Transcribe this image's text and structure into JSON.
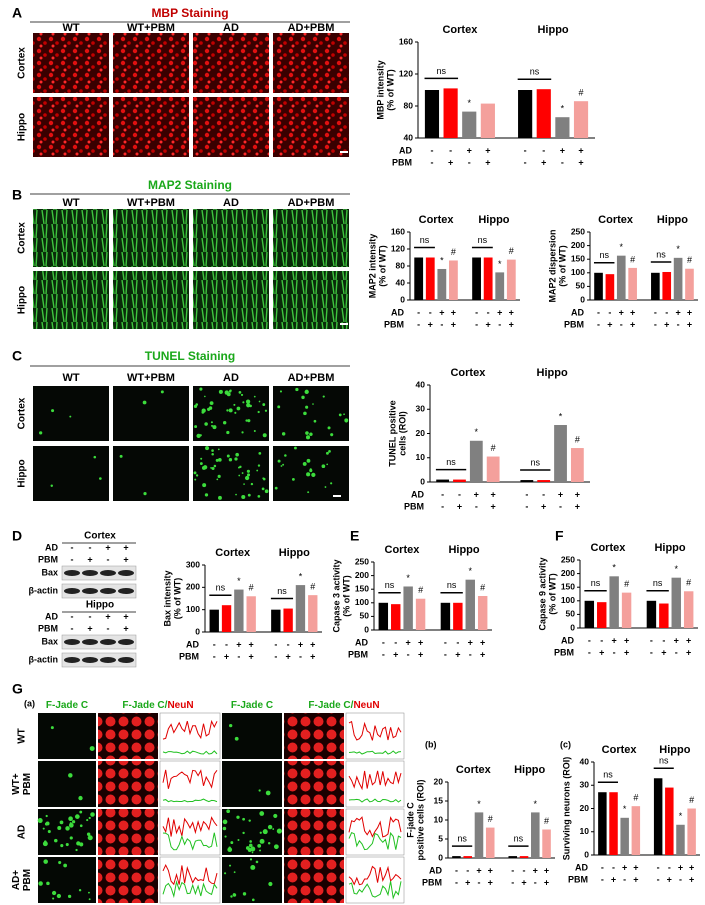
{
  "panels": {
    "A": {
      "letter": "A",
      "title": "MBP Staining",
      "columns": [
        "WT",
        "WT+PBM",
        "AD",
        "AD+PBM"
      ],
      "rows": [
        "Cortex",
        "Hippo"
      ]
    },
    "B": {
      "letter": "B",
      "title": "MAP2 Staining",
      "columns": [
        "WT",
        "WT+PBM",
        "AD",
        "AD+PBM"
      ],
      "rows": [
        "Cortex",
        "Hippo"
      ]
    },
    "C": {
      "letter": "C",
      "title": "TUNEL Staining",
      "columns": [
        "WT",
        "WT+PBM",
        "AD",
        "AD+PBM"
      ],
      "rows": [
        "Cortex",
        "Hippo"
      ]
    },
    "D": {
      "letter": "D",
      "blots": [
        {
          "region": "Cortex",
          "conditions": [
            {
              "name": "AD",
              "signs": [
                "-",
                "-",
                "+",
                "+"
              ]
            },
            {
              "name": "PBM",
              "signs": [
                "-",
                "+",
                "-",
                "+"
              ]
            }
          ],
          "bands": [
            "Bax",
            "β-actin"
          ]
        },
        {
          "region": "Hippo",
          "conditions": [
            {
              "name": "AD",
              "signs": [
                "-",
                "-",
                "+",
                "+"
              ]
            },
            {
              "name": "PBM",
              "signs": [
                "-",
                "+",
                "-",
                "+"
              ]
            }
          ],
          "bands": [
            "Bax",
            "β-actin"
          ]
        }
      ]
    },
    "E": {
      "letter": "E"
    },
    "F": {
      "letter": "F"
    },
    "G": {
      "letter": "G",
      "sub": [
        "(a)",
        "(b)",
        "(c)"
      ],
      "columns": [
        {
          "green": "F-Jade C"
        },
        {
          "green": "F-Jade C/",
          "red": "NeuN"
        },
        {
          "green": "F-Jade C"
        },
        {
          "green": "F-Jade C/",
          "red": "NeuN"
        }
      ],
      "rows": [
        [
          "WT"
        ],
        [
          "WT+",
          "PBM"
        ],
        [
          "AD"
        ],
        [
          "AD+",
          "PBM"
        ]
      ]
    }
  },
  "chart_data": [
    {
      "type": "bar",
      "groups": [
        "Cortex",
        "Hippo"
      ],
      "ylabel": [
        "MBP intensity",
        "(% of WT)"
      ],
      "values": [
        100,
        102,
        73,
        83,
        100,
        101,
        66,
        86
      ],
      "colors": [
        "#000000",
        "#ff0000",
        "#808080",
        "#f4a09c"
      ],
      "ylim": [
        40,
        160
      ],
      "yticks": [
        40,
        80,
        120,
        160
      ],
      "ns": [
        "ns",
        "ns"
      ],
      "marks": [
        null,
        null,
        "*",
        null,
        null,
        null,
        "*",
        "#"
      ],
      "conditions": [
        {
          "name": "AD",
          "signs": [
            "-",
            "-",
            "+",
            "+",
            "-",
            "-",
            "+",
            "+"
          ]
        },
        {
          "name": "PBM",
          "signs": [
            "-",
            "+",
            "-",
            "+",
            "-",
            "+",
            "-",
            "+"
          ]
        }
      ]
    },
    {
      "type": "bar",
      "groups": [
        "Cortex",
        "Hippo"
      ],
      "ylabel": [
        "MAP2 intensity",
        "(% of WT)"
      ],
      "values": [
        100,
        100,
        73,
        93,
        100,
        100,
        65,
        95
      ],
      "colors": [
        "#000000",
        "#ff0000",
        "#808080",
        "#f4a09c"
      ],
      "ylim": [
        0,
        160
      ],
      "yticks": [
        0,
        40,
        80,
        120,
        160
      ],
      "ns": [
        "ns",
        "ns"
      ],
      "marks": [
        null,
        null,
        "*",
        "#",
        null,
        null,
        "*",
        "#"
      ],
      "conditions": [
        {
          "name": "AD",
          "signs": [
            "-",
            "-",
            "+",
            "+",
            "-",
            "-",
            "+",
            "+"
          ]
        },
        {
          "name": "PBM",
          "signs": [
            "-",
            "+",
            "-",
            "+",
            "-",
            "+",
            "-",
            "+"
          ]
        }
      ]
    },
    {
      "type": "bar",
      "groups": [
        "Cortex",
        "Hippo"
      ],
      "ylabel": [
        "MAP2 dispersion",
        "(% of WT)"
      ],
      "values": [
        100,
        95,
        163,
        118,
        100,
        103,
        155,
        115
      ],
      "colors": [
        "#000000",
        "#ff0000",
        "#808080",
        "#f4a09c"
      ],
      "ylim": [
        0,
        250
      ],
      "yticks": [
        0,
        50,
        100,
        150,
        200,
        250
      ],
      "ns": [
        "ns",
        "ns"
      ],
      "marks": [
        null,
        null,
        "*",
        "#",
        null,
        null,
        "*",
        "#"
      ],
      "conditions": [
        {
          "name": "AD",
          "signs": [
            "-",
            "-",
            "+",
            "+",
            "-",
            "-",
            "+",
            "+"
          ]
        },
        {
          "name": "PBM",
          "signs": [
            "-",
            "+",
            "-",
            "+",
            "-",
            "+",
            "-",
            "+"
          ]
        }
      ]
    },
    {
      "type": "bar",
      "groups": [
        "Cortex",
        "Hippo"
      ],
      "ylabel": [
        "TUNEL positive",
        "cells (ROI)"
      ],
      "values": [
        1,
        1,
        17,
        10.5,
        0.8,
        0.8,
        23.5,
        14
      ],
      "colors": [
        "#000000",
        "#ff0000",
        "#808080",
        "#f4a09c"
      ],
      "ylim": [
        0,
        40
      ],
      "yticks": [
        0,
        10,
        20,
        30,
        40
      ],
      "ns": [
        "ns",
        "ns"
      ],
      "marks": [
        null,
        null,
        "*",
        "#",
        null,
        null,
        "*",
        "#"
      ],
      "conditions": [
        {
          "name": "AD",
          "signs": [
            "-",
            "-",
            "+",
            "+",
            "-",
            "-",
            "+",
            "+"
          ]
        },
        {
          "name": "PBM",
          "signs": [
            "-",
            "+",
            "-",
            "+",
            "-",
            "+",
            "-",
            "+"
          ]
        }
      ]
    },
    {
      "type": "bar",
      "groups": [
        "Cortex",
        "Hippo"
      ],
      "ylabel": [
        "Bax intensity",
        "(% of WT)"
      ],
      "values": [
        100,
        120,
        190,
        160,
        100,
        105,
        210,
        165
      ],
      "colors": [
        "#000000",
        "#ff0000",
        "#808080",
        "#f4a09c"
      ],
      "ylim": [
        0,
        300
      ],
      "yticks": [
        0,
        100,
        200,
        300
      ],
      "ns": [
        "ns",
        "ns"
      ],
      "marks": [
        null,
        null,
        "*",
        "#",
        null,
        null,
        "*",
        "#"
      ],
      "conditions": [
        {
          "name": "AD",
          "signs": [
            "-",
            "-",
            "+",
            "+",
            "-",
            "-",
            "+",
            "+"
          ]
        },
        {
          "name": "PBM",
          "signs": [
            "-",
            "+",
            "-",
            "+",
            "-",
            "+",
            "-",
            "+"
          ]
        }
      ]
    },
    {
      "type": "bar",
      "groups": [
        "Cortex",
        "Hippo"
      ],
      "ylabel": [
        "Capase 3 activity",
        "(% of WT)"
      ],
      "values": [
        100,
        95,
        160,
        115,
        100,
        100,
        185,
        125
      ],
      "colors": [
        "#000000",
        "#ff0000",
        "#808080",
        "#f4a09c"
      ],
      "ylim": [
        0,
        250
      ],
      "yticks": [
        0,
        50,
        100,
        150,
        200,
        250
      ],
      "ns": [
        "ns",
        "ns"
      ],
      "marks": [
        null,
        null,
        "*",
        "#",
        null,
        null,
        "*",
        "#"
      ],
      "conditions": [
        {
          "name": "AD",
          "signs": [
            "-",
            "-",
            "+",
            "+",
            "-",
            "-",
            "+",
            "+"
          ]
        },
        {
          "name": "PBM",
          "signs": [
            "-",
            "+",
            "-",
            "+",
            "-",
            "+",
            "-",
            "+"
          ]
        }
      ]
    },
    {
      "type": "bar",
      "groups": [
        "Cortex",
        "Hippo"
      ],
      "ylabel": [
        "Capase 9 activity",
        "(% of WT)"
      ],
      "values": [
        100,
        95,
        190,
        130,
        100,
        90,
        185,
        135
      ],
      "colors": [
        "#000000",
        "#ff0000",
        "#808080",
        "#f4a09c"
      ],
      "ylim": [
        0,
        250
      ],
      "yticks": [
        0,
        50,
        100,
        150,
        200,
        250
      ],
      "ns": [
        "ns",
        "ns"
      ],
      "marks": [
        null,
        null,
        "*",
        "#",
        null,
        null,
        "*",
        "#"
      ],
      "conditions": [
        {
          "name": "AD",
          "signs": [
            "-",
            "-",
            "+",
            "+",
            "-",
            "-",
            "+",
            "+"
          ]
        },
        {
          "name": "PBM",
          "signs": [
            "-",
            "+",
            "-",
            "+",
            "-",
            "+",
            "-",
            "+"
          ]
        }
      ]
    },
    {
      "type": "bar",
      "groups": [
        "Cortex",
        "Hippo"
      ],
      "ylabel": [
        "F-jade C",
        "positive cells (ROI)"
      ],
      "values": [
        0.5,
        0.5,
        12,
        8,
        0.5,
        0.5,
        12,
        7.5
      ],
      "colors": [
        "#000000",
        "#ff0000",
        "#808080",
        "#f4a09c"
      ],
      "ylim": [
        0,
        20
      ],
      "yticks": [
        0,
        5,
        10,
        15,
        20
      ],
      "ns": [
        "ns",
        "ns"
      ],
      "marks": [
        null,
        null,
        "*",
        "#",
        null,
        null,
        "*",
        "#"
      ],
      "conditions": [
        {
          "name": "AD",
          "signs": [
            "-",
            "-",
            "+",
            "+",
            "-",
            "-",
            "+",
            "+"
          ]
        },
        {
          "name": "PBM",
          "signs": [
            "-",
            "+",
            "-",
            "+",
            "-",
            "+",
            "-",
            "+"
          ]
        }
      ]
    },
    {
      "type": "bar",
      "groups": [
        "Cortex",
        "Hippo"
      ],
      "ylabel": [
        "Surviving neurons (ROI)"
      ],
      "values": [
        27,
        27,
        16,
        21,
        33,
        29,
        13,
        20
      ],
      "colors": [
        "#000000",
        "#ff0000",
        "#808080",
        "#f4a09c"
      ],
      "ylim": [
        0,
        40
      ],
      "yticks": [
        0,
        10,
        20,
        30,
        40
      ],
      "ns": [
        "ns",
        "ns"
      ],
      "marks": [
        null,
        null,
        "*",
        "#",
        null,
        null,
        "*",
        "#"
      ],
      "conditions": [
        {
          "name": "AD",
          "signs": [
            "-",
            "-",
            "+",
            "+",
            "-",
            "-",
            "+",
            "+"
          ]
        },
        {
          "name": "PBM",
          "signs": [
            "-",
            "+",
            "-",
            "+",
            "-",
            "+",
            "-",
            "+"
          ]
        }
      ]
    }
  ]
}
